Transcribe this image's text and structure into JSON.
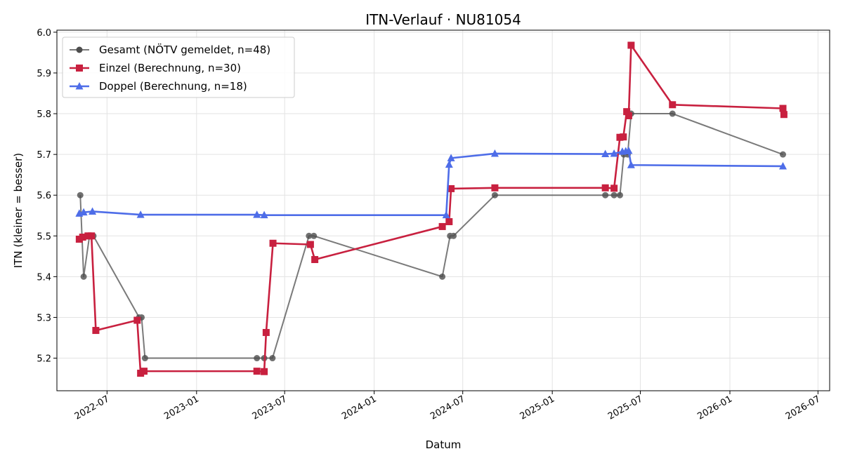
{
  "chart_data": {
    "type": "line",
    "title": "ITN-Verlauf · NU81054",
    "xlabel": "Datum",
    "ylabel": "ITN  (kleiner = besser)",
    "xlim": [
      "2022-03-20",
      "2026-07-25"
    ],
    "ylim": [
      5.12,
      6.005
    ],
    "xticks": [
      "2022-07",
      "2023-01",
      "2023-07",
      "2024-01",
      "2024-07",
      "2025-01",
      "2025-07",
      "2026-01",
      "2026-07"
    ],
    "yticks": [
      "5.2",
      "5.3",
      "5.4",
      "5.5",
      "5.6",
      "5.7",
      "5.8",
      "5.9",
      "6.0"
    ],
    "grid": true,
    "legend_position": "top-left",
    "series": [
      {
        "name": "Gesamt (NÖTV gemeldet, n=48)",
        "color": "#4d4d4d",
        "marker": "circle",
        "x": [
          "2022-05-07",
          "2022-05-14",
          "2022-05-26",
          "2022-06-03",
          "2022-09-05",
          "2022-09-10",
          "2022-09-17",
          "2023-05-05",
          "2023-05-20",
          "2023-06-06",
          "2023-08-20",
          "2023-08-30",
          "2024-05-20",
          "2024-06-05",
          "2024-06-12",
          "2024-09-05",
          "2025-04-20",
          "2025-05-08",
          "2025-05-20",
          "2025-05-28",
          "2025-06-05",
          "2025-06-12",
          "2025-09-05",
          "2026-04-20"
        ],
        "values": [
          5.6,
          5.4,
          5.5,
          5.5,
          5.3,
          5.3,
          5.2,
          5.2,
          5.2,
          5.2,
          5.5,
          5.5,
          5.4,
          5.5,
          5.5,
          5.6,
          5.6,
          5.6,
          5.6,
          5.7,
          5.7,
          5.8,
          5.8,
          5.7
        ]
      },
      {
        "name": "Einzel (Berechnung, n=30)",
        "color": "#c8203f",
        "marker": "square",
        "x": [
          "2022-05-05",
          "2022-05-12",
          "2022-05-23",
          "2022-05-30",
          "2022-06-08",
          "2022-09-01",
          "2022-09-08",
          "2022-09-15",
          "2023-05-05",
          "2023-05-20",
          "2023-05-24",
          "2023-06-07",
          "2023-08-23",
          "2023-09-01",
          "2024-05-20",
          "2024-06-03",
          "2024-06-07",
          "2024-09-05",
          "2025-04-20",
          "2025-05-08",
          "2025-05-20",
          "2025-05-27",
          "2025-06-03",
          "2025-06-07",
          "2025-06-12",
          "2025-09-05",
          "2026-04-20",
          "2026-04-22"
        ],
        "values": [
          5.492,
          5.497,
          5.5,
          5.5,
          5.268,
          5.293,
          5.163,
          5.168,
          5.168,
          5.167,
          5.263,
          5.482,
          5.479,
          5.442,
          5.523,
          5.535,
          5.616,
          5.618,
          5.618,
          5.617,
          5.742,
          5.743,
          5.805,
          5.795,
          5.968,
          5.822,
          5.813,
          5.798
        ]
      },
      {
        "name": "Doppel (Berechnung, n=18)",
        "color": "#4e6de8",
        "marker": "triangle",
        "x": [
          "2022-05-05",
          "2022-05-14",
          "2022-06-01",
          "2022-09-08",
          "2023-05-05",
          "2023-05-20",
          "2024-05-28",
          "2024-06-03",
          "2024-06-07",
          "2024-09-05",
          "2025-04-20",
          "2025-05-08",
          "2025-05-25",
          "2025-06-01",
          "2025-06-07",
          "2025-06-12",
          "2026-04-20"
        ],
        "values": [
          5.555,
          5.558,
          5.56,
          5.552,
          5.552,
          5.551,
          5.551,
          5.675,
          5.691,
          5.702,
          5.701,
          5.702,
          5.707,
          5.708,
          5.709,
          5.674,
          5.671
        ]
      }
    ]
  }
}
